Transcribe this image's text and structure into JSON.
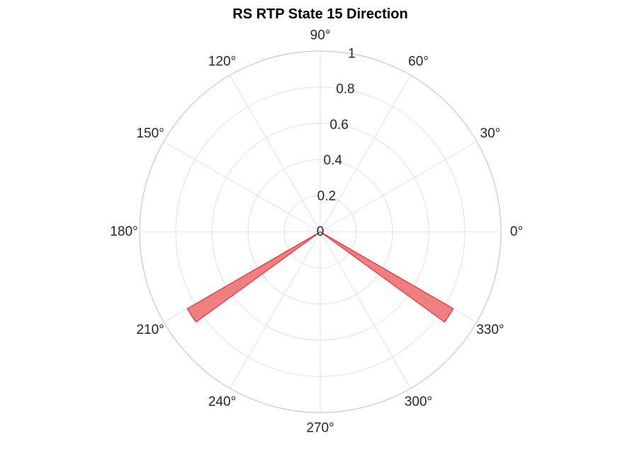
{
  "chart_data": {
    "type": "polar-histogram",
    "title": "RS  RTP State 15 Direction",
    "theta_ticks": [
      0,
      30,
      60,
      90,
      120,
      150,
      180,
      210,
      240,
      270,
      300,
      330
    ],
    "theta_tick_labels": [
      "0°",
      "30°",
      "60°",
      "90°",
      "120°",
      "150°",
      "180°",
      "210°",
      "240°",
      "270°",
      "300°",
      "330°"
    ],
    "r_lim": [
      0,
      1
    ],
    "r_ticks": [
      0,
      0.2,
      0.4,
      0.6,
      0.8,
      1
    ],
    "r_tick_labels": [
      "0",
      "0.2",
      "0.4",
      "0.6",
      "0.8",
      "1"
    ],
    "r_tick_angle_deg": 80,
    "bins": [
      {
        "theta_start_deg": 210,
        "theta_end_deg": 216,
        "value": 0.85
      },
      {
        "theta_start_deg": 324,
        "theta_end_deg": 330,
        "value": 0.85
      }
    ],
    "grid": true,
    "colors": {
      "bar_fill": "#f08080",
      "bar_edge": "#e8141e",
      "grid": "#e0e0e0",
      "outer_ring": "#bdbdbd",
      "text": "#262626"
    }
  }
}
